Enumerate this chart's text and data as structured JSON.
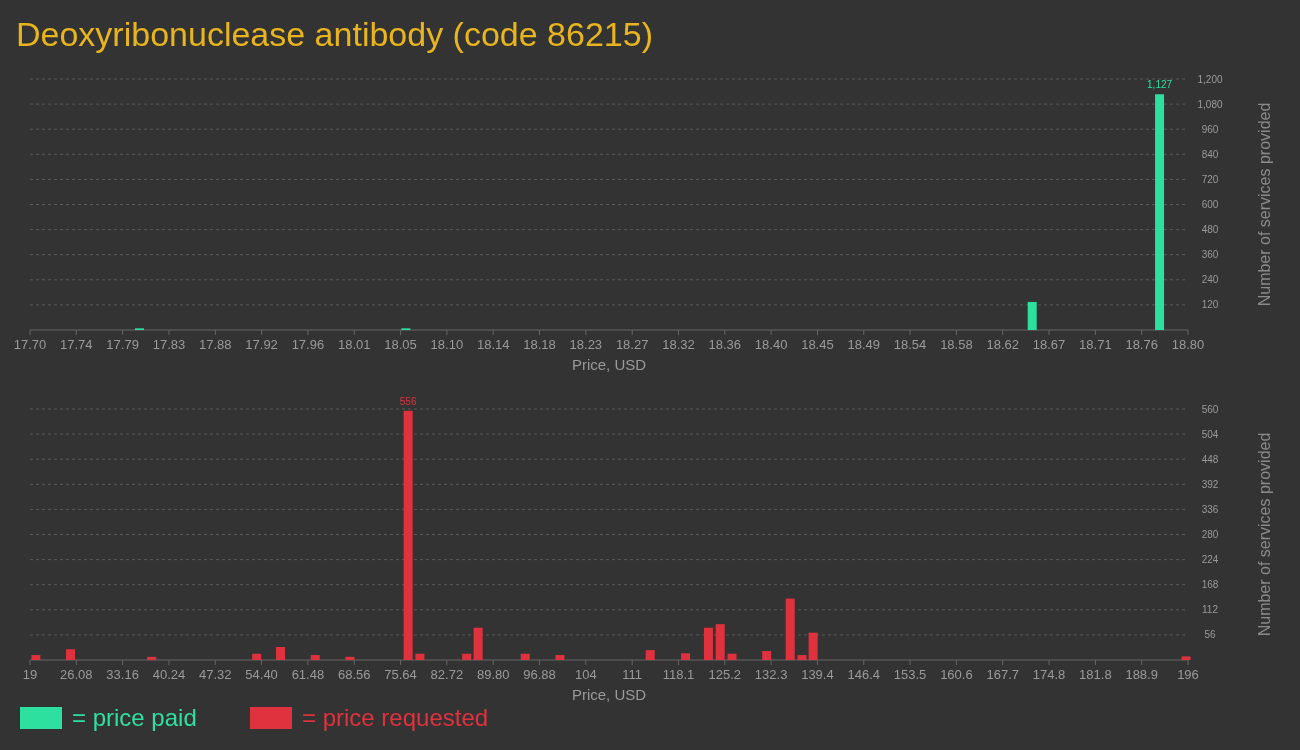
{
  "chart_data": [
    {
      "type": "bar",
      "title": "Deoxyribonuclease antibody (code 86215)",
      "xlabel": "Price, USD",
      "ylabel": "Number of services provided",
      "x": [
        17.804,
        18.057,
        18.652,
        18.773
      ],
      "series": [
        {
          "name": "= price paid",
          "color": "#2ee0a0",
          "values": [
            8,
            8,
            134,
            1127
          ],
          "value_labels": [
            null,
            null,
            null,
            "1,127"
          ]
        }
      ],
      "xlim": [
        17.7,
        18.8
      ],
      "xticks": [
        {
          "value": 17.7,
          "label": "17.70"
        },
        {
          "value": 17.744,
          "label": "17.74"
        },
        {
          "value": 17.788,
          "label": "17.79"
        },
        {
          "value": 17.832,
          "label": "17.83"
        },
        {
          "value": 17.876,
          "label": "17.88"
        },
        17.92,
        {
          "value": 17.964,
          "label": "17.96"
        },
        {
          "value": 18.008,
          "label": "18.01"
        },
        {
          "value": 18.052,
          "label": "18.05"
        },
        {
          "value": 18.096,
          "label": "18.10"
        },
        18.14,
        {
          "value": 18.184,
          "label": "18.18"
        },
        {
          "value": 18.228,
          "label": "18.23"
        },
        {
          "value": 18.272,
          "label": "18.27"
        },
        {
          "value": 18.316,
          "label": "18.32"
        },
        18.36,
        {
          "value": 18.404,
          "label": "18.40"
        },
        {
          "value": 18.448,
          "label": "18.45"
        },
        {
          "value": 18.492,
          "label": "18.49"
        },
        {
          "value": 18.536,
          "label": "18.54"
        },
        18.58,
        {
          "value": 18.624,
          "label": "18.62"
        },
        {
          "value": 18.668,
          "label": "18.67"
        },
        {
          "value": 18.712,
          "label": "18.71"
        },
        {
          "value": 18.756,
          "label": "18.76"
        },
        {
          "value": 18.8,
          "label": "18.80"
        }
      ],
      "ylim": [
        0,
        1200
      ],
      "yticks": [
        120,
        240,
        360,
        480,
        600,
        720,
        840,
        960,
        {
          "value": 1080,
          "label": "1,080"
        },
        {
          "value": 1200,
          "label": "1,200"
        }
      ],
      "grid": "y",
      "legend": "bottom"
    },
    {
      "type": "bar",
      "xlabel": "Price, USD",
      "ylabel": "Number of services provided",
      "x": [
        19.9,
        25.2,
        37.6,
        53.65,
        57.3,
        62.6,
        67.9,
        76.8,
        78.6,
        85.75,
        87.5,
        94.7,
        100.0,
        113.8,
        119.2,
        122.7,
        124.5,
        126.3,
        131.6,
        135.2,
        137.0,
        138.7,
        195.7
      ],
      "series": [
        {
          "name": "= price requested",
          "color": "#e0323e",
          "values": [
            11,
            24,
            7,
            14,
            29,
            11,
            7,
            556,
            14,
            14,
            72,
            14,
            11,
            22,
            15,
            72,
            80,
            14,
            20,
            137,
            11,
            61,
            8
          ],
          "value_labels": [
            null,
            null,
            null,
            null,
            null,
            null,
            null,
            "556",
            null,
            null,
            null,
            null,
            null,
            null,
            null,
            null,
            null,
            null,
            null,
            null,
            null,
            null,
            null
          ]
        }
      ],
      "xlim": [
        19,
        196
      ],
      "xticks": [
        19,
        26.08,
        33.16,
        40.24,
        47.32,
        {
          "value": 54.4,
          "label": "54.40"
        },
        61.48,
        68.56,
        75.64,
        82.72,
        {
          "value": 89.8,
          "label": "89.80"
        },
        96.88,
        {
          "value": 103.96,
          "label": "104"
        },
        {
          "value": 111.04,
          "label": "111"
        },
        {
          "value": 118.12,
          "label": "118.1"
        },
        125.2,
        {
          "value": 132.28,
          "label": "132.3"
        },
        {
          "value": 139.36,
          "label": "139.4"
        },
        {
          "value": 146.44,
          "label": "146.4"
        },
        {
          "value": 153.52,
          "label": "153.5"
        },
        160.6,
        {
          "value": 167.68,
          "label": "167.7"
        },
        {
          "value": 174.76,
          "label": "174.8"
        },
        {
          "value": 181.84,
          "label": "181.8"
        },
        {
          "value": 188.92,
          "label": "188.9"
        },
        196
      ],
      "ylim": [
        0,
        560
      ],
      "yticks": [
        56,
        112,
        168,
        224,
        280,
        336,
        392,
        448,
        504,
        560
      ],
      "grid": "y",
      "legend": "bottom"
    }
  ]
}
